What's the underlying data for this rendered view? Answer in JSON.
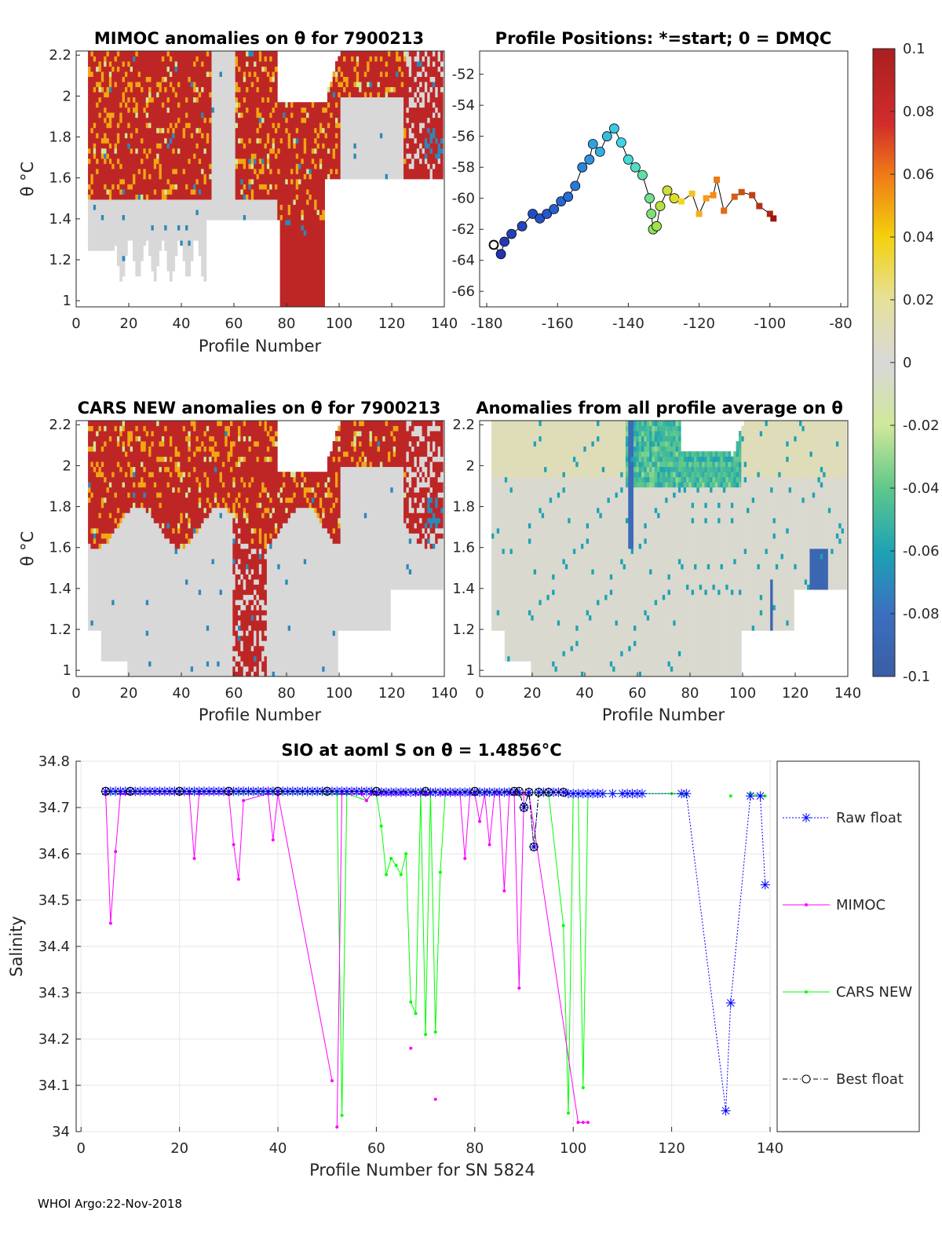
{
  "footer": "WHOI Argo:22-Nov-2018",
  "colors": {
    "raw": "#0000ff",
    "mimoc": "#ff00ff",
    "cars": "#00ff00",
    "best": "#000000"
  },
  "chart_data": [
    {
      "id": "mimoc",
      "type": "heatmap",
      "title": "MIMOC anomalies on θ  for 7900213",
      "xlabel": "Profile Number",
      "ylabel": "θ °C",
      "xlim": [
        0,
        140
      ],
      "ylim": [
        0.97,
        2.22
      ],
      "xticks": [
        "0",
        "20",
        "40",
        "60",
        "80",
        "100",
        "120",
        "140"
      ],
      "yticks": [
        "1",
        "1.2",
        "1.4",
        "1.6",
        "1.8",
        "2",
        "2.2"
      ]
    },
    {
      "id": "positions",
      "type": "scatter",
      "title": "Profile Positions: *=start; 0 = DMQC",
      "xlim": [
        -182,
        -78
      ],
      "ylim": [
        -67,
        -50.5
      ],
      "xticks": [
        "-180",
        "-160",
        "-140",
        "-120",
        "-100",
        "-80"
      ],
      "yticks": [
        "-66",
        "-64",
        "-62",
        "-60",
        "-58",
        "-56",
        "-54",
        "-52"
      ],
      "lon": [
        -178,
        -176,
        -175,
        -173,
        -170,
        -167,
        -165,
        -163,
        -161,
        -159,
        -157,
        -155,
        -153,
        -151,
        -150,
        -148,
        -146,
        -144,
        -142,
        -140,
        -138,
        -136,
        -134,
        -133.5,
        -133,
        -132,
        -131,
        -129,
        -127,
        -125,
        -122,
        -120,
        -118,
        -116,
        -115,
        -113,
        -110,
        -108,
        -105,
        -103,
        -100,
        -99
      ],
      "lat": [
        -63,
        -63.6,
        -62.8,
        -62.3,
        -61.8,
        -61,
        -61.3,
        -61,
        -60.7,
        -60.2,
        -59.9,
        -59.2,
        -58,
        -57.5,
        -56.5,
        -57,
        -56,
        -55.5,
        -56.4,
        -57.5,
        -58,
        -58.5,
        -60,
        -61,
        -62,
        -61.8,
        -60.5,
        -59.5,
        -60,
        -60.2,
        -59.7,
        -61,
        -60,
        -59.8,
        -58.8,
        -60.8,
        -59.9,
        -59.6,
        -59.8,
        -60.5,
        -61,
        -61.3
      ],
      "start": "*",
      "dmqc_marker": "0"
    },
    {
      "id": "colorbar",
      "type": "heatmap",
      "range": [
        -0.1,
        0.1
      ],
      "ticks": [
        "0.1",
        "0.08",
        "0.06",
        "0.04",
        "0.02",
        "0",
        "-0.02",
        "-0.04",
        "-0.06",
        "-0.08",
        "-0.1"
      ]
    },
    {
      "id": "cars",
      "type": "heatmap",
      "title": "CARS NEW anomalies on θ for 7900213",
      "xlabel": "Profile Number",
      "ylabel": "θ °C",
      "xlim": [
        0,
        140
      ],
      "ylim": [
        0.97,
        2.22
      ],
      "xticks": [
        "0",
        "20",
        "40",
        "60",
        "80",
        "100",
        "120",
        "140"
      ],
      "yticks": [
        "1",
        "1.2",
        "1.4",
        "1.6",
        "1.8",
        "2",
        "2.2"
      ]
    },
    {
      "id": "avg",
      "type": "heatmap",
      "title": "Anomalies from all profile average on θ",
      "xlabel": "Profile Number",
      "xlim": [
        0,
        140
      ],
      "ylim": [
        0.97,
        2.22
      ],
      "xticks": [
        "0",
        "20",
        "40",
        "60",
        "80",
        "100",
        "120",
        "140"
      ],
      "yticks": [
        "1",
        "1.2",
        "1.4",
        "1.6",
        "1.8",
        "2",
        "2.2"
      ]
    },
    {
      "id": "salinity",
      "type": "line",
      "title": "SIO at aoml S on θ = 1.4856°C",
      "xlabel": "Profile Number for SN 5824",
      "ylabel": "Salinity",
      "xlim": [
        -1,
        140
      ],
      "ylim": [
        34,
        34.8
      ],
      "xticks": [
        0,
        20,
        40,
        60,
        80,
        100,
        120,
        140
      ],
      "yticks": [
        "34",
        "34.1",
        "34.2",
        "34.3",
        "34.4",
        "34.5",
        "34.6",
        "34.7",
        "34.8"
      ],
      "legend": [
        "Raw float",
        "MIMOC",
        "CARS NEW",
        "Best float"
      ],
      "series": [
        {
          "name": "Raw float",
          "x": [
            5,
            6,
            7,
            8,
            9,
            10,
            11,
            12,
            13,
            14,
            15,
            16,
            17,
            18,
            19,
            20,
            21,
            22,
            23,
            24,
            25,
            26,
            27,
            28,
            29,
            30,
            31,
            32,
            33,
            34,
            35,
            36,
            37,
            38,
            39,
            40,
            41,
            42,
            43,
            44,
            45,
            46,
            47,
            48,
            49,
            50,
            51,
            52,
            53,
            54,
            55,
            56,
            57,
            58,
            59,
            60,
            61,
            62,
            63,
            64,
            65,
            66,
            67,
            68,
            69,
            70,
            71,
            72,
            73,
            74,
            75,
            76,
            77,
            78,
            79,
            80,
            81,
            82,
            83,
            84,
            85,
            86,
            87,
            88,
            89,
            90,
            91,
            92,
            93,
            94,
            95,
            96,
            97,
            98,
            99,
            100,
            101,
            102,
            103,
            104,
            105,
            106,
            108,
            110,
            111,
            112,
            113,
            114,
            122,
            123,
            131,
            132,
            136,
            138,
            139
          ],
          "y": [
            34.735,
            34.735,
            34.735,
            34.735,
            34.735,
            34.735,
            34.735,
            34.735,
            34.735,
            34.735,
            34.735,
            34.735,
            34.735,
            34.735,
            34.735,
            34.735,
            34.735,
            34.735,
            34.735,
            34.735,
            34.735,
            34.735,
            34.735,
            34.735,
            34.735,
            34.735,
            34.735,
            34.735,
            34.735,
            34.735,
            34.735,
            34.735,
            34.735,
            34.735,
            34.735,
            34.735,
            34.735,
            34.735,
            34.735,
            34.735,
            34.735,
            34.735,
            34.735,
            34.735,
            34.735,
            34.735,
            34.735,
            34.735,
            34.735,
            34.735,
            34.735,
            34.735,
            34.735,
            34.735,
            34.735,
            34.733,
            34.733,
            34.733,
            34.733,
            34.733,
            34.733,
            34.733,
            34.733,
            34.733,
            34.733,
            34.733,
            34.733,
            34.733,
            34.733,
            34.733,
            34.733,
            34.733,
            34.733,
            34.733,
            34.733,
            34.733,
            34.733,
            34.733,
            34.733,
            34.733,
            34.733,
            34.733,
            34.733,
            34.733,
            34.733,
            34.7,
            34.733,
            34.615,
            34.733,
            34.733,
            34.733,
            34.733,
            34.733,
            34.733,
            34.73,
            34.73,
            34.73,
            34.73,
            34.73,
            34.73,
            34.73,
            34.73,
            34.73,
            34.73,
            34.73,
            34.73,
            34.73,
            34.73,
            34.73,
            34.73,
            34.045,
            34.278,
            34.725,
            34.725,
            34.533
          ]
        },
        {
          "name": "MIMOC",
          "x": [
            5,
            6,
            7,
            8,
            9,
            22,
            23,
            24,
            30,
            31,
            32,
            33,
            38,
            39,
            40,
            51,
            52,
            53,
            57,
            58,
            59,
            60,
            61,
            62,
            63,
            64,
            65,
            66,
            67,
            68,
            69,
            70,
            71,
            72,
            73,
            74,
            75,
            76,
            77,
            78,
            79,
            80,
            81,
            82,
            83,
            84,
            85,
            86,
            87,
            88,
            89,
            90,
            91,
            101,
            102,
            103
          ],
          "y": [
            34.73,
            34.45,
            34.605,
            34.73,
            34.73,
            34.73,
            34.59,
            34.73,
            34.73,
            34.62,
            34.545,
            34.715,
            34.73,
            34.63,
            34.73,
            34.11,
            34.01,
            34.73,
            34.73,
            34.715,
            34.73,
            34.73,
            34.73,
            34.73,
            34.73,
            34.73,
            34.73,
            34.73,
            34.18,
            34.73,
            34.73,
            34.73,
            34.73,
            34.07,
            34.73,
            34.73,
            34.73,
            34.73,
            34.73,
            34.59,
            34.73,
            34.73,
            34.67,
            34.73,
            34.62,
            34.73,
            34.73,
            34.52,
            34.73,
            34.73,
            34.31,
            34.73,
            34.73,
            34.02,
            34.02,
            34.02
          ],
          "gaps": [
            [
              51,
              52
            ],
            [
              66,
              67
            ],
            [
              67,
              68
            ],
            [
              71,
              72
            ],
            [
              72,
              73
            ],
            [
              100,
              101
            ]
          ]
        },
        {
          "name": "CARS NEW",
          "x": [
            5,
            10,
            20,
            30,
            40,
            50,
            52,
            53,
            54,
            58,
            59,
            60,
            61,
            62,
            63,
            64,
            65,
            66,
            67,
            68,
            69,
            70,
            71,
            72,
            73,
            74,
            75,
            80,
            85,
            90,
            95,
            98,
            99,
            100,
            101,
            102,
            103,
            110,
            120,
            123,
            132,
            136,
            139
          ],
          "y": [
            34.73,
            34.73,
            34.73,
            34.73,
            34.73,
            34.73,
            34.73,
            34.035,
            34.73,
            34.715,
            34.73,
            34.73,
            34.66,
            34.555,
            34.59,
            34.575,
            34.555,
            34.6,
            34.28,
            34.255,
            34.73,
            34.21,
            34.73,
            34.215,
            34.56,
            34.73,
            34.73,
            34.73,
            34.73,
            34.73,
            34.73,
            34.445,
            34.04,
            34.73,
            34.73,
            34.095,
            34.73,
            34.73,
            34.73,
            34.728,
            34.725,
            34.73,
            34.725
          ],
          "gaps": [
            [
              123,
              132
            ],
            [
              132,
              136
            ]
          ]
        },
        {
          "name": "Best float",
          "x": [
            5,
            10,
            20,
            30,
            40,
            50,
            60,
            70,
            80,
            88,
            89,
            90,
            91,
            92,
            93,
            95,
            98
          ],
          "y": [
            34.735,
            34.735,
            34.735,
            34.735,
            34.735,
            34.735,
            34.735,
            34.735,
            34.735,
            34.735,
            34.735,
            34.7,
            34.733,
            34.615,
            34.733,
            34.733,
            34.733
          ]
        }
      ]
    }
  ]
}
